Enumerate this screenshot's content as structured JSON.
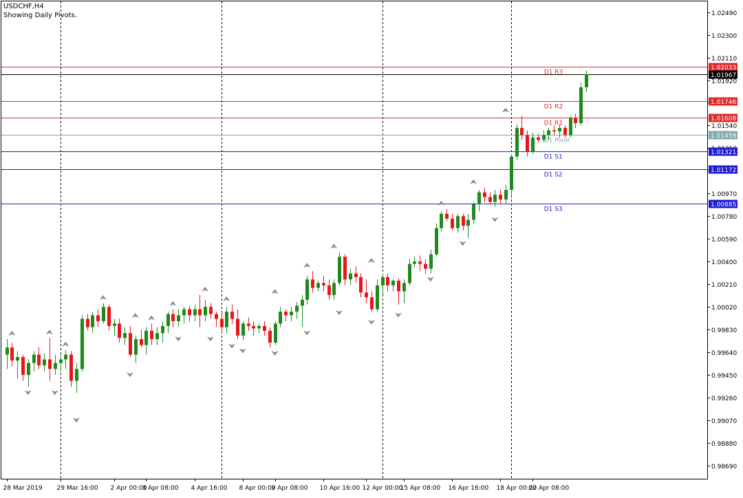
{
  "header": {
    "symbol": "USDCHF,H4",
    "subtitle": "Showing Daily Pivots."
  },
  "price_tag": {
    "value": 1.01967,
    "label": "1.01967"
  },
  "colors": {
    "background": "#ffffff",
    "bull": "#1e8a1e",
    "bear": "#e8161a",
    "resistance": "#e0282a",
    "support": "#1b1bcf",
    "pivot": "#7fa8a8",
    "current": "#000000",
    "fractal": "#8a8a8a",
    "grid": "#000000",
    "axis_text": "#000000"
  },
  "chart_data": {
    "type": "candlestick",
    "ylim": [
      0.9858,
      1.0258
    ],
    "y_ticks": [
      "1.02490",
      "1.02300",
      "1.02110",
      "1.01920",
      "1.01730",
      "1.01540",
      "1.01350",
      "1.01160",
      "1.00970",
      "1.00780",
      "1.00590",
      "1.00400",
      "1.00210",
      "1.00020",
      "0.99830",
      "0.99640",
      "0.99450",
      "0.99260",
      "0.99070",
      "0.98880",
      "0.98690"
    ],
    "x_labels": [
      {
        "i": 0,
        "label": "28 Mar 2019"
      },
      {
        "i": 10,
        "label": "29 Mar 16:00"
      },
      {
        "i": 20,
        "label": "2 Apr 00:00"
      },
      {
        "i": 26,
        "label": "3 Apr 08:00"
      },
      {
        "i": 35,
        "label": "4 Apr 16:00"
      },
      {
        "i": 44,
        "label": "8 Apr 00:00"
      },
      {
        "i": 50,
        "label": "9 Apr 08:00"
      },
      {
        "i": 59,
        "label": "10 Apr 16:00"
      },
      {
        "i": 67,
        "label": "12 Apr 00:00"
      },
      {
        "i": 74,
        "label": "15 Apr 08:00"
      },
      {
        "i": 83,
        "label": "16 Apr 16:00"
      },
      {
        "i": 92,
        "label": "18 Apr 00:00"
      },
      {
        "i": 98,
        "label": "22 Apr 08:00"
      }
    ],
    "day_separators": [
      10,
      40,
      70,
      94
    ],
    "pivot_levels": [
      {
        "name": "D1 R3",
        "value": 1.02033,
        "label": "1.02033",
        "kind": "resistance"
      },
      {
        "name": "D1 R2",
        "value": 1.01746,
        "label": "1.01746",
        "kind": "resistance"
      },
      {
        "name": "D1 R1",
        "value": 1.01608,
        "label": "1.01608",
        "kind": "resistance"
      },
      {
        "name": "D1 Pivot",
        "value": 1.01459,
        "label": "1.01459",
        "kind": "pivot"
      },
      {
        "name": "D1 S1",
        "value": 1.01321,
        "label": "1.01321",
        "kind": "support"
      },
      {
        "name": "D1 S2",
        "value": 1.01172,
        "label": "1.01172",
        "kind": "support"
      },
      {
        "name": "D1 S3",
        "value": 1.00885,
        "label": "1.00885",
        "kind": "support"
      }
    ],
    "candles": [
      {
        "o": 0.9962,
        "h": 0.9975,
        "l": 0.995,
        "c": 0.9968
      },
      {
        "o": 0.9968,
        "h": 0.9972,
        "l": 0.9952,
        "c": 0.9957
      },
      {
        "o": 0.9957,
        "h": 0.9965,
        "l": 0.9942,
        "c": 0.996
      },
      {
        "o": 0.996,
        "h": 0.9962,
        "l": 0.994,
        "c": 0.9945
      },
      {
        "o": 0.9945,
        "h": 0.9958,
        "l": 0.9935,
        "c": 0.9955
      },
      {
        "o": 0.9955,
        "h": 0.9965,
        "l": 0.9948,
        "c": 0.9962
      },
      {
        "o": 0.9962,
        "h": 0.9968,
        "l": 0.995,
        "c": 0.9953
      },
      {
        "o": 0.9953,
        "h": 0.9963,
        "l": 0.9948,
        "c": 0.9958
      },
      {
        "o": 0.9958,
        "h": 0.9976,
        "l": 0.994,
        "c": 0.995
      },
      {
        "o": 0.995,
        "h": 0.9962,
        "l": 0.9945,
        "c": 0.9955
      },
      {
        "o": 0.9955,
        "h": 0.9962,
        "l": 0.9948,
        "c": 0.9958
      },
      {
        "o": 0.9958,
        "h": 0.9966,
        "l": 0.995,
        "c": 0.9962
      },
      {
        "o": 0.9962,
        "h": 0.9965,
        "l": 0.9935,
        "c": 0.994
      },
      {
        "o": 0.994,
        "h": 0.9955,
        "l": 0.993,
        "c": 0.995
      },
      {
        "o": 0.995,
        "h": 0.9995,
        "l": 0.9948,
        "c": 0.9992
      },
      {
        "o": 0.9992,
        "h": 0.9996,
        "l": 0.9982,
        "c": 0.9985
      },
      {
        "o": 0.9985,
        "h": 0.9998,
        "l": 0.998,
        "c": 0.9995
      },
      {
        "o": 0.9995,
        "h": 1.0,
        "l": 0.9985,
        "c": 0.999
      },
      {
        "o": 0.999,
        "h": 1.0005,
        "l": 0.9988,
        "c": 1.0002
      },
      {
        "o": 1.0002,
        "h": 1.0004,
        "l": 0.9982,
        "c": 0.9986
      },
      {
        "o": 0.9986,
        "h": 0.9992,
        "l": 0.9978,
        "c": 0.9988
      },
      {
        "o": 0.9988,
        "h": 0.9992,
        "l": 0.9972,
        "c": 0.9976
      },
      {
        "o": 0.9976,
        "h": 0.9985,
        "l": 0.997,
        "c": 0.998
      },
      {
        "o": 0.998,
        "h": 0.9986,
        "l": 0.996,
        "c": 0.9962
      },
      {
        "o": 0.9962,
        "h": 0.9978,
        "l": 0.9955,
        "c": 0.9975
      },
      {
        "o": 0.9975,
        "h": 0.9983,
        "l": 0.9968,
        "c": 0.997
      },
      {
        "o": 0.997,
        "h": 0.9985,
        "l": 0.9962,
        "c": 0.9982
      },
      {
        "o": 0.9982,
        "h": 0.9988,
        "l": 0.997,
        "c": 0.9975
      },
      {
        "o": 0.9975,
        "h": 0.9985,
        "l": 0.997,
        "c": 0.998
      },
      {
        "o": 0.998,
        "h": 0.999,
        "l": 0.9972,
        "c": 0.9986
      },
      {
        "o": 0.9986,
        "h": 0.9998,
        "l": 0.998,
        "c": 0.9996
      },
      {
        "o": 0.9996,
        "h": 1.0,
        "l": 0.9985,
        "c": 0.999
      },
      {
        "o": 0.999,
        "h": 1.0,
        "l": 0.9985,
        "c": 0.9995
      },
      {
        "o": 0.9995,
        "h": 1.0002,
        "l": 0.9988,
        "c": 1.0
      },
      {
        "o": 1.0,
        "h": 1.0003,
        "l": 0.999,
        "c": 0.9995
      },
      {
        "o": 0.9995,
        "h": 1.0004,
        "l": 0.999,
        "c": 1.0
      },
      {
        "o": 1.0,
        "h": 1.0012,
        "l": 0.9985,
        "c": 0.9995
      },
      {
        "o": 0.9995,
        "h": 1.0008,
        "l": 0.999,
        "c": 1.0002
      },
      {
        "o": 1.0002,
        "h": 1.0005,
        "l": 0.9992,
        "c": 0.9996
      },
      {
        "o": 0.9996,
        "h": 0.9998,
        "l": 0.9985,
        "c": 0.9992
      },
      {
        "o": 0.9992,
        "h": 0.9998,
        "l": 0.998,
        "c": 0.9985
      },
      {
        "o": 0.9985,
        "h": 1.0002,
        "l": 0.998,
        "c": 0.9998
      },
      {
        "o": 0.9998,
        "h": 1.0004,
        "l": 0.9988,
        "c": 0.9992
      },
      {
        "o": 0.9992,
        "h": 1.0,
        "l": 0.9975,
        "c": 0.9978
      },
      {
        "o": 0.9978,
        "h": 0.999,
        "l": 0.9974,
        "c": 0.9988
      },
      {
        "o": 0.9988,
        "h": 0.9993,
        "l": 0.9982,
        "c": 0.9986
      },
      {
        "o": 0.9986,
        "h": 0.999,
        "l": 0.9978,
        "c": 0.9984
      },
      {
        "o": 0.9984,
        "h": 0.9988,
        "l": 0.998,
        "c": 0.9986
      },
      {
        "o": 0.9986,
        "h": 0.999,
        "l": 0.9978,
        "c": 0.9982
      },
      {
        "o": 0.9982,
        "h": 0.9985,
        "l": 0.9968,
        "c": 0.9972
      },
      {
        "o": 0.9972,
        "h": 0.999,
        "l": 0.997,
        "c": 0.9988
      },
      {
        "o": 0.9988,
        "h": 1.0002,
        "l": 0.9985,
        "c": 0.9998
      },
      {
        "o": 0.9998,
        "h": 1.0,
        "l": 0.999,
        "c": 0.9995
      },
      {
        "o": 0.9995,
        "h": 1.0002,
        "l": 0.999,
        "c": 0.9998
      },
      {
        "o": 0.9998,
        "h": 1.0006,
        "l": 0.9992,
        "c": 1.0003
      },
      {
        "o": 1.0003,
        "h": 1.0012,
        "l": 0.9985,
        "c": 1.0008
      },
      {
        "o": 1.0008,
        "h": 1.0028,
        "l": 1.0004,
        "c": 1.0025
      },
      {
        "o": 1.0025,
        "h": 1.0032,
        "l": 1.0014,
        "c": 1.0018
      },
      {
        "o": 1.0018,
        "h": 1.0024,
        "l": 1.0015,
        "c": 1.0022
      },
      {
        "o": 1.0022,
        "h": 1.0028,
        "l": 1.0015,
        "c": 1.002
      },
      {
        "o": 1.002,
        "h": 1.0025,
        "l": 1.0008,
        "c": 1.0012
      },
      {
        "o": 1.0012,
        "h": 1.0025,
        "l": 1.0008,
        "c": 1.0022
      },
      {
        "o": 1.0022,
        "h": 1.0048,
        "l": 1.002,
        "c": 1.0044
      },
      {
        "o": 1.0044,
        "h": 1.0046,
        "l": 1.002,
        "c": 1.0025
      },
      {
        "o": 1.0025,
        "h": 1.0034,
        "l": 1.002,
        "c": 1.003
      },
      {
        "o": 1.003,
        "h": 1.0036,
        "l": 1.0022,
        "c": 1.0027
      },
      {
        "o": 1.0027,
        "h": 1.003,
        "l": 1.001,
        "c": 1.0014
      },
      {
        "o": 1.0014,
        "h": 1.0025,
        "l": 1.0005,
        "c": 1.001
      },
      {
        "o": 1.001,
        "h": 1.0015,
        "l": 0.9998,
        "c": 1.0
      },
      {
        "o": 1.0,
        "h": 1.0025,
        "l": 0.9998,
        "c": 1.002
      },
      {
        "o": 1.002,
        "h": 1.003,
        "l": 1.0012,
        "c": 1.0027
      },
      {
        "o": 1.0027,
        "h": 1.003,
        "l": 1.0015,
        "c": 1.002
      },
      {
        "o": 1.002,
        "h": 1.0025,
        "l": 1.0015,
        "c": 1.0024
      },
      {
        "o": 1.0024,
        "h": 1.0026,
        "l": 1.0004,
        "c": 1.0015
      },
      {
        "o": 1.0015,
        "h": 1.0025,
        "l": 1.0005,
        "c": 1.0022
      },
      {
        "o": 1.0022,
        "h": 1.0042,
        "l": 1.002,
        "c": 1.0038
      },
      {
        "o": 1.0038,
        "h": 1.0044,
        "l": 1.0035,
        "c": 1.004
      },
      {
        "o": 1.004,
        "h": 1.0045,
        "l": 1.0032,
        "c": 1.0038
      },
      {
        "o": 1.0038,
        "h": 1.0042,
        "l": 1.003,
        "c": 1.0034
      },
      {
        "o": 1.0034,
        "h": 1.005,
        "l": 1.003,
        "c": 1.0046
      },
      {
        "o": 1.0046,
        "h": 1.0072,
        "l": 1.0044,
        "c": 1.0068
      },
      {
        "o": 1.0068,
        "h": 1.0082,
        "l": 1.0065,
        "c": 1.008
      },
      {
        "o": 1.008,
        "h": 1.0084,
        "l": 1.0074,
        "c": 1.0076
      },
      {
        "o": 1.0076,
        "h": 1.008,
        "l": 1.0066,
        "c": 1.0068
      },
      {
        "o": 1.0068,
        "h": 1.008,
        "l": 1.0064,
        "c": 1.0078
      },
      {
        "o": 1.0078,
        "h": 1.008,
        "l": 1.0066,
        "c": 1.007
      },
      {
        "o": 1.007,
        "h": 1.008,
        "l": 1.006,
        "c": 1.0075
      },
      {
        "o": 1.0075,
        "h": 1.009,
        "l": 1.0072,
        "c": 1.0088
      },
      {
        "o": 1.0088,
        "h": 1.01,
        "l": 1.0082,
        "c": 1.0098
      },
      {
        "o": 1.0098,
        "h": 1.0102,
        "l": 1.009,
        "c": 1.0094
      },
      {
        "o": 1.0094,
        "h": 1.0098,
        "l": 1.0088,
        "c": 1.009
      },
      {
        "o": 1.009,
        "h": 1.01,
        "l": 1.0086,
        "c": 1.0096
      },
      {
        "o": 1.0096,
        "h": 1.01,
        "l": 1.0088,
        "c": 1.0092
      },
      {
        "o": 1.0092,
        "h": 1.0104,
        "l": 1.0088,
        "c": 1.01
      },
      {
        "o": 1.01,
        "h": 1.013,
        "l": 1.0096,
        "c": 1.0128
      },
      {
        "o": 1.0128,
        "h": 1.0155,
        "l": 1.0125,
        "c": 1.0152
      },
      {
        "o": 1.0152,
        "h": 1.0162,
        "l": 1.0142,
        "c": 1.0146
      },
      {
        "o": 1.0146,
        "h": 1.015,
        "l": 1.0128,
        "c": 1.0132
      },
      {
        "o": 1.0132,
        "h": 1.0148,
        "l": 1.013,
        "c": 1.0144
      },
      {
        "o": 1.0144,
        "h": 1.0147,
        "l": 1.014,
        "c": 1.0142
      },
      {
        "o": 1.0142,
        "h": 1.015,
        "l": 1.014,
        "c": 1.0146
      },
      {
        "o": 1.0146,
        "h": 1.0152,
        "l": 1.0142,
        "c": 1.015
      },
      {
        "o": 1.015,
        "h": 1.0154,
        "l": 1.0146,
        "c": 1.0149
      },
      {
        "o": 1.0149,
        "h": 1.0155,
        "l": 1.0144,
        "c": 1.0152
      },
      {
        "o": 1.0152,
        "h": 1.0154,
        "l": 1.0144,
        "c": 1.0146
      },
      {
        "o": 1.0146,
        "h": 1.0162,
        "l": 1.0144,
        "c": 1.016
      },
      {
        "o": 1.016,
        "h": 1.0164,
        "l": 1.0152,
        "c": 1.0156
      },
      {
        "o": 1.0156,
        "h": 1.019,
        "l": 1.0154,
        "c": 1.0186
      },
      {
        "o": 1.0186,
        "h": 1.02,
        "l": 1.0182,
        "c": 1.0197
      }
    ],
    "fractals_up": [
      {
        "i": 1,
        "price": 0.9975
      },
      {
        "i": 8,
        "price": 0.9976
      },
      {
        "i": 11,
        "price": 0.9966
      },
      {
        "i": 18,
        "price": 1.0005
      },
      {
        "i": 24,
        "price": 0.999
      },
      {
        "i": 27,
        "price": 0.9988
      },
      {
        "i": 31,
        "price": 1.0
      },
      {
        "i": 37,
        "price": 1.0012
      },
      {
        "i": 41,
        "price": 1.0004
      },
      {
        "i": 50,
        "price": 1.001
      },
      {
        "i": 56,
        "price": 1.0032
      },
      {
        "i": 61,
        "price": 1.0048
      },
      {
        "i": 68,
        "price": 1.0036
      },
      {
        "i": 81,
        "price": 1.0084
      },
      {
        "i": 87,
        "price": 1.0102
      },
      {
        "i": 93,
        "price": 1.0162
      }
    ],
    "fractals_down": [
      {
        "i": 4,
        "price": 0.9935
      },
      {
        "i": 9,
        "price": 0.9935
      },
      {
        "i": 13,
        "price": 0.9912
      },
      {
        "i": 23,
        "price": 0.995
      },
      {
        "i": 32,
        "price": 0.998
      },
      {
        "i": 38,
        "price": 0.998
      },
      {
        "i": 42,
        "price": 0.9974
      },
      {
        "i": 44,
        "price": 0.997
      },
      {
        "i": 50,
        "price": 0.9968
      },
      {
        "i": 56,
        "price": 0.9985
      },
      {
        "i": 62,
        "price": 1.0002
      },
      {
        "i": 68,
        "price": 0.9994
      },
      {
        "i": 73,
        "price": 1.0
      },
      {
        "i": 79,
        "price": 1.003
      },
      {
        "i": 85,
        "price": 1.006
      },
      {
        "i": 91,
        "price": 1.008
      }
    ]
  }
}
